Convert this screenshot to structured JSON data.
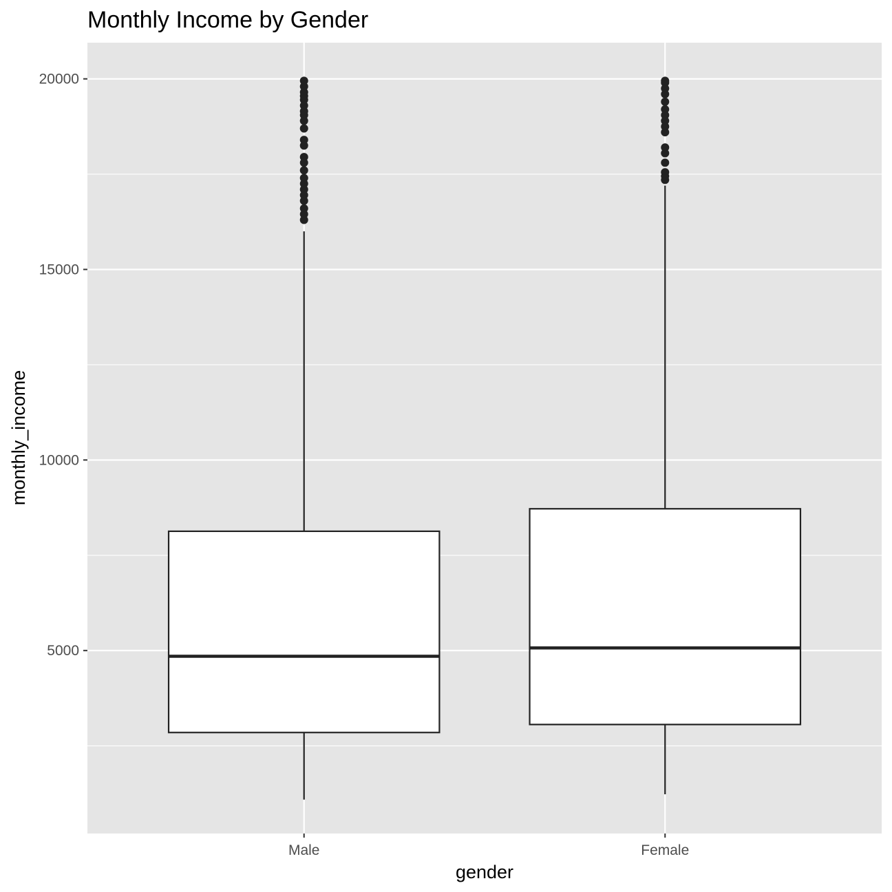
{
  "chart_data": {
    "type": "boxplot",
    "title": "Monthly Income by Gender",
    "xlabel": "gender",
    "ylabel": "monthly_income",
    "categories": [
      "Male",
      "Female"
    ],
    "ylim": [
      200,
      20950
    ],
    "yticks": [
      5000,
      10000,
      15000,
      20000
    ],
    "grid": true,
    "colors": {
      "panel": "#e5e5e5",
      "grid": "#ffffff",
      "box_fill": "#ffffff",
      "line": "#222222",
      "tick_label": "#4d4d4d"
    },
    "boxes": [
      {
        "category": "Male",
        "whisker_low": 1090,
        "q1": 2850,
        "median": 4850,
        "q3": 8130,
        "whisker_high": 16000,
        "outliers": [
          16300,
          16450,
          16600,
          16800,
          16950,
          17100,
          17250,
          17400,
          17600,
          17800,
          17950,
          18250,
          18400,
          18700,
          18900,
          19050,
          19150,
          19300,
          19450,
          19550,
          19650,
          19800,
          19950
        ]
      },
      {
        "category": "Female",
        "whisker_low": 1230,
        "q1": 3060,
        "median": 5070,
        "q3": 8720,
        "whisker_high": 17200,
        "outliers": [
          17350,
          17450,
          17550,
          17800,
          18050,
          18200,
          18600,
          18750,
          18900,
          19050,
          19200,
          19400,
          19600,
          19750,
          19900,
          19950
        ]
      }
    ]
  }
}
